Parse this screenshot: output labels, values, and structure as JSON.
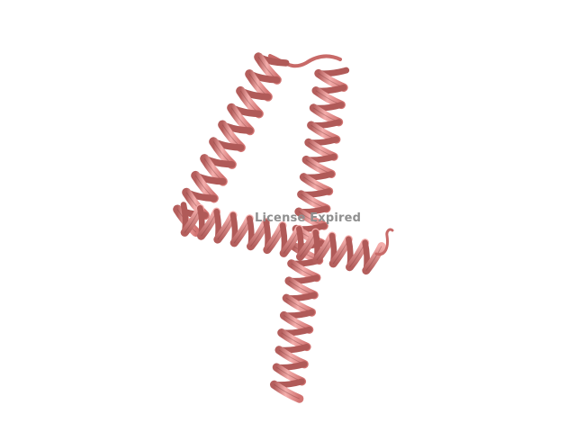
{
  "watermark": {
    "text": "License Expired"
  },
  "colors": {
    "background": "#ffffff",
    "ribbon": "#e88a88",
    "ribbon_light": "#f6b3b1",
    "ribbon_dark": "#b05a58",
    "outline": "#7a3a39"
  },
  "structure": {
    "type": "protein-cartoon",
    "elements": [
      "helix-left",
      "helix-right",
      "helix-horizontal",
      "turn-loop"
    ]
  }
}
